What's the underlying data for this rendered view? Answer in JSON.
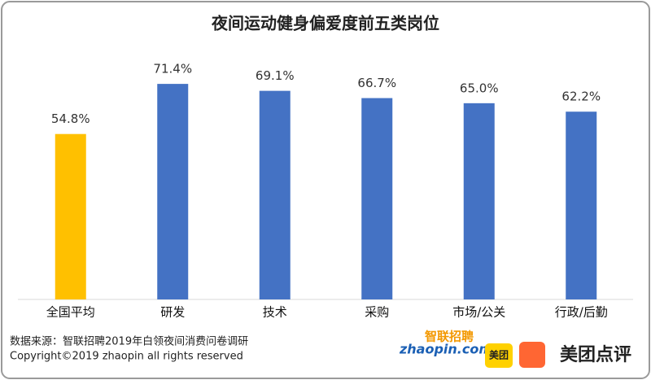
{
  "chart_data": {
    "type": "bar",
    "title": "夜间运动健身偏爱度前五类岗位",
    "categories": [
      "全国平均",
      "研发",
      "技术",
      "采购",
      "市场/公关",
      "行政/后勤"
    ],
    "values": [
      54.8,
      71.4,
      69.1,
      66.7,
      65.0,
      62.2
    ],
    "value_labels": [
      "54.8%",
      "71.4%",
      "69.1%",
      "66.7%",
      "65.0%",
      "62.2%"
    ],
    "colors": [
      "#ffc000",
      "#4472c4",
      "#4472c4",
      "#4472c4",
      "#4472c4",
      "#4472c4"
    ]
  },
  "footer": {
    "source": "数据来源：智联招聘2019年白领夜间消费问卷调研",
    "copyright": "Copyright©2019 zhaopin all rights reserved"
  },
  "logos": {
    "zhilian": "智联招聘",
    "zhaopin": "zhaopin.com",
    "meituan": "美团",
    "dianping": "美团点评"
  }
}
